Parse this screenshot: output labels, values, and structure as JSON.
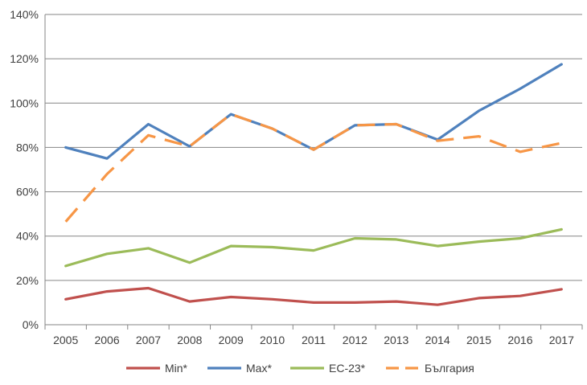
{
  "chart_data": {
    "type": "line",
    "title": "",
    "xlabel": "",
    "ylabel": "",
    "ylim": [
      0,
      140
    ],
    "yticks": [
      0,
      20,
      40,
      60,
      80,
      100,
      120,
      140
    ],
    "ytick_labels": [
      "0%",
      "20%",
      "40%",
      "60%",
      "80%",
      "100%",
      "120%",
      "140%"
    ],
    "categories": [
      "2005",
      "2006",
      "2007",
      "2008",
      "2009",
      "2010",
      "2011",
      "2012",
      "2013",
      "2014",
      "2015",
      "2016",
      "2017"
    ],
    "grid": "horizontal",
    "legend_position": "bottom",
    "series": [
      {
        "name": "Min*",
        "color": "#c0504d",
        "dash": "solid",
        "values": [
          11.5,
          15,
          16.5,
          10.5,
          12.5,
          11.5,
          10,
          10,
          10.5,
          9,
          12,
          13,
          16
        ]
      },
      {
        "name": "Max*",
        "color": "#4f81bd",
        "dash": "solid",
        "values": [
          80,
          75,
          90.5,
          80.5,
          95,
          88.5,
          79,
          90,
          90.5,
          83.5,
          96.5,
          106.5,
          117.5
        ]
      },
      {
        "name": "ЕС-23*",
        "color": "#9bbb59",
        "dash": "solid",
        "values": [
          26.5,
          32,
          34.5,
          28,
          35.5,
          35,
          33.5,
          39,
          38.5,
          35.5,
          37.5,
          39,
          43
        ]
      },
      {
        "name": "България",
        "color": "#f79646",
        "dash": "dashed",
        "values": [
          46.5,
          68,
          85.5,
          80.5,
          95,
          88.5,
          79,
          90,
          90.5,
          83,
          85,
          78,
          82
        ]
      }
    ]
  }
}
